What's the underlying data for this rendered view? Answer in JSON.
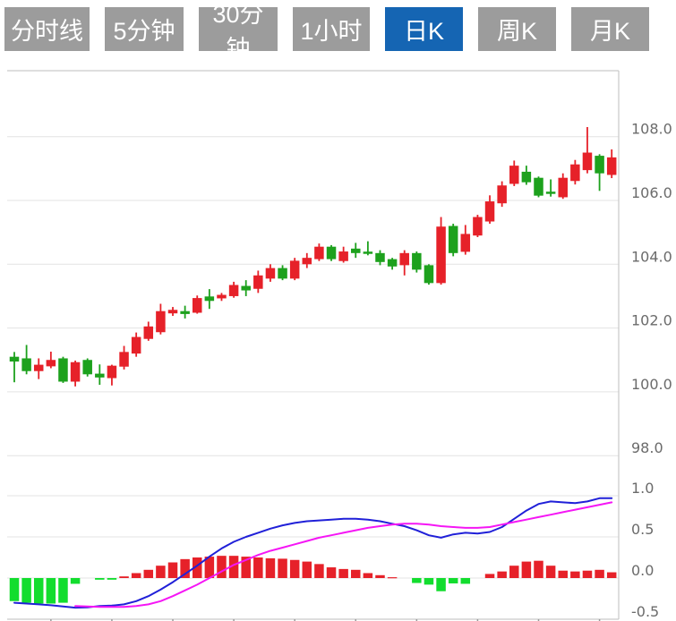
{
  "toolbar": {
    "buttons": [
      {
        "label": "分时线",
        "active": false
      },
      {
        "label": "5分钟",
        "active": false
      },
      {
        "label": "30分钟",
        "active": false
      },
      {
        "label": "1小时",
        "active": false
      },
      {
        "label": "日K",
        "active": true
      },
      {
        "label": "周K",
        "active": false
      },
      {
        "label": "月K",
        "active": false
      }
    ],
    "active_bg": "#1565b3",
    "inactive_bg": "#9c9c9c"
  },
  "chart_data": {
    "type": "candlestick_with_macd",
    "title": "",
    "price_axis": {
      "labels": [
        "108.0",
        "106.0",
        "104.0",
        "102.0",
        "100.0",
        "98.0"
      ],
      "ticks": [
        108.0,
        106.0,
        104.0,
        102.0,
        100.0,
        98.0
      ],
      "range": [
        97.5,
        108.6
      ],
      "position": "right",
      "grid": true
    },
    "indicator_axis": {
      "labels": [
        "1.0",
        "0.5",
        "0.0",
        "-0.5"
      ],
      "ticks": [
        1.0,
        0.5,
        0.0,
        -0.5
      ],
      "range": [
        -0.5,
        1.0
      ],
      "position": "right",
      "grid": true
    },
    "x_axis": {
      "tick_candle_indexes": [
        4,
        9,
        14,
        19,
        24,
        29,
        34,
        39,
        44,
        49
      ],
      "labels": []
    },
    "candles_ohlc_note": "each candle is [open, high, low, close]; red = close>=open (up), green = down",
    "candles": [
      [
        101.1,
        101.25,
        100.3,
        100.95
      ],
      [
        101.05,
        101.47,
        100.55,
        100.65
      ],
      [
        100.65,
        101.05,
        100.4,
        100.85
      ],
      [
        100.8,
        101.26,
        100.74,
        101.0
      ],
      [
        101.05,
        101.1,
        100.28,
        100.32
      ],
      [
        100.32,
        100.98,
        100.17,
        100.93
      ],
      [
        101.0,
        101.05,
        100.48,
        100.55
      ],
      [
        100.57,
        100.86,
        100.22,
        100.45
      ],
      [
        100.43,
        100.85,
        100.2,
        100.82
      ],
      [
        100.79,
        101.44,
        100.7,
        101.25
      ],
      [
        101.2,
        101.86,
        101.1,
        101.72
      ],
      [
        101.66,
        102.2,
        101.6,
        102.05
      ],
      [
        101.87,
        102.76,
        101.8,
        102.53
      ],
      [
        102.46,
        102.66,
        102.38,
        102.57
      ],
      [
        102.53,
        102.7,
        102.3,
        102.44
      ],
      [
        102.48,
        103.02,
        102.45,
        102.94
      ],
      [
        102.99,
        103.22,
        102.6,
        102.85
      ],
      [
        102.93,
        103.1,
        102.85,
        103.04
      ],
      [
        103.0,
        103.45,
        102.95,
        103.35
      ],
      [
        103.32,
        103.5,
        103.0,
        103.18
      ],
      [
        103.23,
        103.8,
        103.1,
        103.65
      ],
      [
        103.55,
        104.0,
        103.45,
        103.88
      ],
      [
        103.88,
        103.97,
        103.5,
        103.55
      ],
      [
        103.55,
        104.2,
        103.5,
        104.11
      ],
      [
        104.0,
        104.35,
        103.88,
        104.2
      ],
      [
        104.16,
        104.65,
        104.1,
        104.55
      ],
      [
        104.55,
        104.6,
        104.1,
        104.16
      ],
      [
        104.1,
        104.55,
        104.05,
        104.4
      ],
      [
        104.49,
        104.67,
        104.2,
        104.35
      ],
      [
        104.36,
        104.72,
        104.28,
        104.33
      ],
      [
        104.35,
        104.44,
        103.97,
        104.07
      ],
      [
        104.16,
        104.2,
        103.83,
        103.93
      ],
      [
        103.97,
        104.44,
        103.65,
        104.35
      ],
      [
        104.35,
        104.4,
        103.74,
        103.83
      ],
      [
        103.97,
        104.0,
        103.36,
        103.41
      ],
      [
        103.41,
        105.48,
        103.36,
        105.18
      ],
      [
        105.2,
        105.27,
        104.25,
        104.35
      ],
      [
        104.39,
        105.23,
        104.3,
        104.95
      ],
      [
        104.9,
        105.55,
        104.85,
        105.48
      ],
      [
        105.34,
        106.16,
        105.27,
        105.97
      ],
      [
        105.91,
        106.6,
        105.8,
        106.47
      ],
      [
        106.52,
        107.25,
        106.45,
        107.09
      ],
      [
        106.9,
        107.09,
        106.49,
        106.57
      ],
      [
        106.71,
        106.75,
        106.1,
        106.15
      ],
      [
        106.24,
        106.66,
        106.12,
        106.2
      ],
      [
        106.1,
        106.85,
        106.05,
        106.71
      ],
      [
        106.61,
        107.27,
        106.5,
        107.13
      ],
      [
        106.95,
        108.3,
        106.85,
        107.5
      ],
      [
        107.4,
        107.45,
        106.3,
        106.85
      ],
      [
        106.8,
        107.6,
        106.7,
        107.35
      ]
    ],
    "macd": {
      "histogram": [
        -0.28,
        -0.3,
        -0.31,
        -0.31,
        -0.3,
        -0.07,
        0,
        -0.02,
        -0.02,
        0.02,
        0.06,
        0.1,
        0.15,
        0.19,
        0.23,
        0.25,
        0.26,
        0.27,
        0.27,
        0.26,
        0.25,
        0.24,
        0.235,
        0.22,
        0.2,
        0.17,
        0.13,
        0.11,
        0.1,
        0.06,
        0.035,
        0.01,
        0,
        -0.06,
        -0.08,
        -0.16,
        -0.065,
        -0.07,
        0,
        0.05,
        0.08,
        0.15,
        0.2,
        0.21,
        0.15,
        0.09,
        0.08,
        0.09,
        0.1,
        0.07
      ],
      "dif": [
        -0.3,
        -0.31,
        -0.32,
        -0.33,
        -0.345,
        -0.36,
        -0.355,
        -0.34,
        -0.335,
        -0.32,
        -0.28,
        -0.22,
        -0.14,
        -0.05,
        0.05,
        0.15,
        0.26,
        0.36,
        0.44,
        0.5,
        0.55,
        0.6,
        0.64,
        0.67,
        0.69,
        0.7,
        0.71,
        0.72,
        0.72,
        0.71,
        0.69,
        0.66,
        0.63,
        0.58,
        0.52,
        0.49,
        0.53,
        0.55,
        0.54,
        0.56,
        0.62,
        0.72,
        0.82,
        0.9,
        0.93,
        0.92,
        0.91,
        0.93,
        0.97,
        0.97
      ],
      "dea": [
        null,
        null,
        null,
        null,
        null,
        -0.34,
        -0.345,
        -0.35,
        -0.35,
        -0.35,
        -0.34,
        -0.32,
        -0.28,
        -0.22,
        -0.15,
        -0.08,
        0.0,
        0.08,
        0.16,
        0.22,
        0.28,
        0.33,
        0.37,
        0.41,
        0.45,
        0.49,
        0.52,
        0.55,
        0.58,
        0.61,
        0.63,
        0.65,
        0.66,
        0.66,
        0.65,
        0.63,
        0.62,
        0.61,
        0.61,
        0.62,
        0.65,
        0.68,
        0.71,
        0.74,
        0.77,
        0.8,
        0.83,
        0.86,
        0.89,
        0.92
      ]
    },
    "colors": {
      "up": "#e62129",
      "down": "#1da11d",
      "hist_up": "#e62129",
      "hist_down": "#12dd2e",
      "dif_line": "#2020d8",
      "dea_line": "#f516f5",
      "grid": "#e3e3e3",
      "border": "#c9c9c9",
      "axis_text": "#6b6b6b",
      "tick": "#9a9a9a"
    },
    "legend_position": "none",
    "grid": true
  }
}
